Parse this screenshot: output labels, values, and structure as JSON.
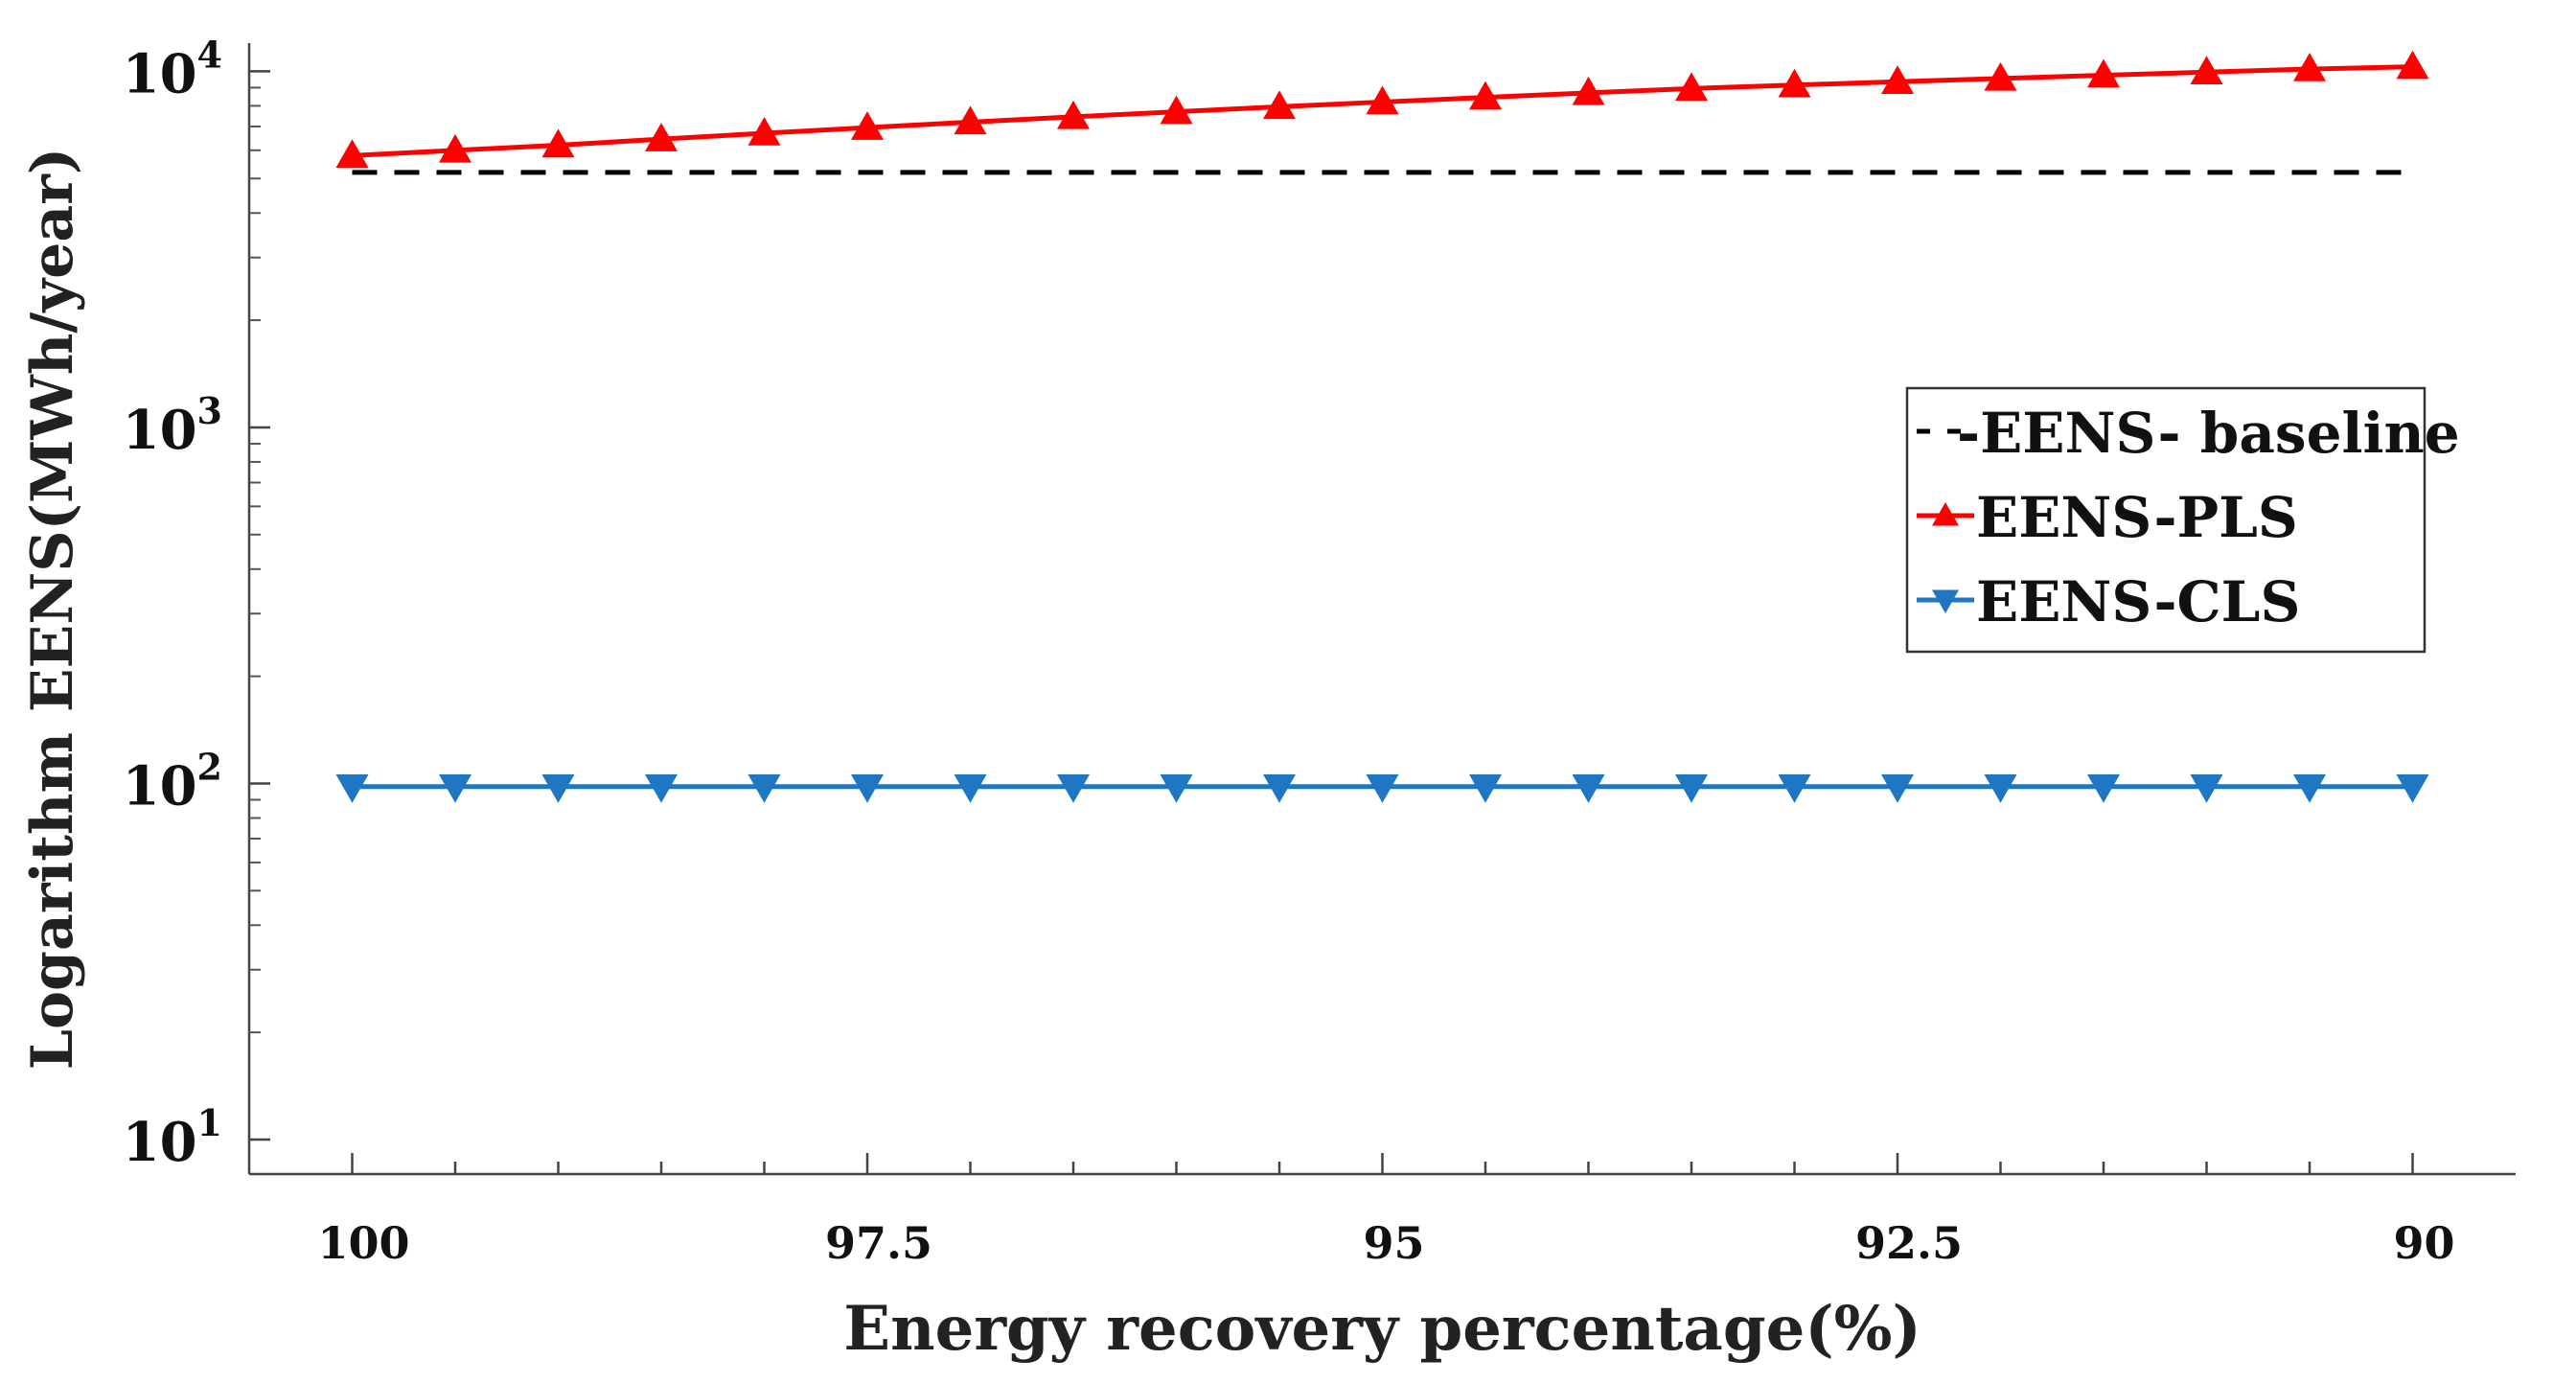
{
  "chart_data": {
    "type": "line",
    "title": "",
    "xlabel": "Energy recovery percentage(%)",
    "ylabel": "Logarithm EENS(MWh/year)",
    "yscale": "log",
    "ylim": [
      8,
      12000
    ],
    "xlim": [
      100.5,
      89.5
    ],
    "x_ticks": [
      100,
      97.5,
      95,
      92.5,
      90
    ],
    "x_tick_labels": [
      "100",
      "97.5",
      "95",
      "92.5",
      "90"
    ],
    "y_ticks": [
      10,
      100,
      1000,
      10000
    ],
    "y_tick_base": "10",
    "y_tick_exponents": [
      "1",
      "2",
      "3",
      "4"
    ],
    "x": [
      100,
      99.5,
      99,
      98.5,
      98,
      97.5,
      97,
      96.5,
      96,
      95.5,
      95,
      94.5,
      94,
      93.5,
      93,
      92.5,
      92,
      91.5,
      91,
      90.5,
      90
    ],
    "series": [
      {
        "name": "EENS- baseline",
        "legend_label": "-EENS- baseline",
        "color": "#000000",
        "style": "dashed",
        "marker": "none",
        "values": [
          5200,
          5200,
          5200,
          5200,
          5200,
          5200,
          5200,
          5200,
          5200,
          5200,
          5200,
          5200,
          5200,
          5200,
          5200,
          5200,
          5200,
          5200,
          5200,
          5200,
          5200
        ]
      },
      {
        "name": "EENS-PLS",
        "legend_label": "EENS-PLS",
        "color": "#ff0000",
        "style": "solid",
        "marker": "triangle-up",
        "values": [
          5800,
          6000,
          6200,
          6450,
          6700,
          6950,
          7200,
          7450,
          7700,
          7950,
          8200,
          8450,
          8700,
          8950,
          9150,
          9350,
          9550,
          9750,
          9950,
          10150,
          10300
        ]
      },
      {
        "name": "EENS-CLS",
        "legend_label": "EENS-CLS",
        "color": "#1f77c4",
        "style": "solid",
        "marker": "triangle-down",
        "values": [
          98,
          98,
          98,
          98,
          98,
          98,
          98,
          98,
          98,
          98,
          98,
          98,
          98,
          98,
          98,
          98,
          98,
          98,
          98,
          98,
          98
        ]
      }
    ],
    "legend_position": "right"
  }
}
